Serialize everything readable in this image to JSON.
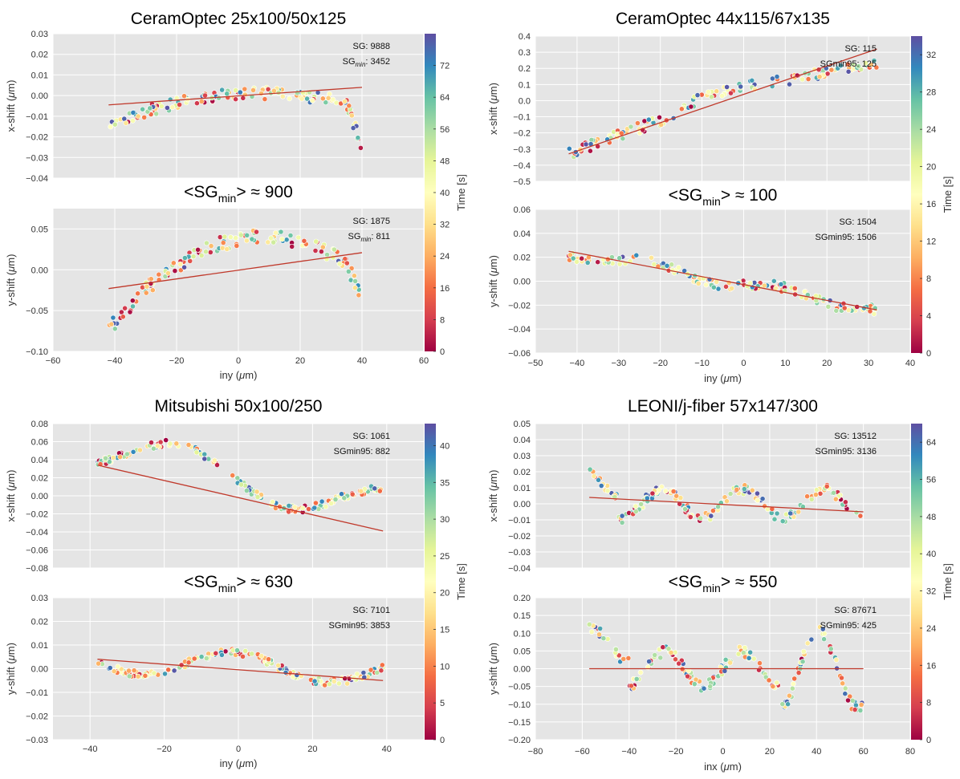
{
  "colorbar_palette": [
    "#9e0142",
    "#d53e4f",
    "#f46d43",
    "#fdae61",
    "#fee08b",
    "#ffffbf",
    "#e6f598",
    "#abdda4",
    "#66c2a5",
    "#3288bd",
    "#5e4fa2"
  ],
  "plot_background": "#e5e5e5",
  "fit_line_color": "#c0392b",
  "chart_data": [
    {
      "type": "scatter",
      "title": "CeramOptec 25x100/50x125",
      "sg_min_label": {
        "prefix": "<SG",
        "sub": "min",
        "suffix": "> ≈ 900"
      },
      "xlabel": {
        "main": "iny (",
        "greek": "μ",
        "unit": "m)"
      },
      "xlim": [
        -60,
        60
      ],
      "xticks": [
        "−60",
        "−40",
        "−20",
        "0",
        "20",
        "40",
        "60"
      ],
      "xtick_values": [
        -60,
        -40,
        -20,
        0,
        20,
        40,
        60
      ],
      "colorbar": {
        "label": "Time [s]",
        "range": [
          0,
          80
        ],
        "ticks": [
          "0",
          "8",
          "16",
          "24",
          "32",
          "40",
          "48",
          "56",
          "64",
          "72"
        ],
        "tick_values": [
          0,
          8,
          16,
          24,
          32,
          40,
          48,
          56,
          64,
          72
        ]
      },
      "panels": [
        {
          "ylabel": {
            "main": "x-shift (",
            "greek": "μ",
            "unit": "m)"
          },
          "ylim": [
            -0.04,
            0.03
          ],
          "yticks": [
            "−0.04",
            "−0.03",
            "−0.02",
            "−0.01",
            "0.00",
            "0.01",
            "0.02",
            "0.03"
          ],
          "ytick_values": [
            -0.04,
            -0.03,
            -0.02,
            -0.01,
            0.0,
            0.01,
            0.02,
            0.03
          ],
          "annotation": {
            "line1": "SG: 9888",
            "line2_prefix": "SG",
            "line2_sub": "min",
            "line2_suffix": ": 3452"
          },
          "fit": {
            "x": [
              -42,
              40
            ],
            "y": [
              -0.0045,
              0.004
            ]
          },
          "series": {
            "kind": "xshift_ceram",
            "tmax": 80,
            "n": 140,
            "xrange": [
              -42,
              40
            ]
          }
        },
        {
          "ylabel": {
            "main": "y-shift (",
            "greek": "μ",
            "unit": "m)"
          },
          "ylim": [
            -0.1,
            0.075
          ],
          "yticks": [
            "−0.10",
            "−0.05",
            "0.00",
            "0.05"
          ],
          "ytick_values": [
            -0.1,
            -0.05,
            0.0,
            0.05
          ],
          "annotation": {
            "line1": "SG: 1875",
            "line2_prefix": "SG",
            "line2_sub": "min",
            "line2_suffix": ": 811"
          },
          "fit": {
            "x": [
              -42,
              40
            ],
            "y": [
              -0.023,
              0.021
            ]
          },
          "series": {
            "kind": "yshift_ceram",
            "tmax": 80,
            "n": 140,
            "xrange": [
              -42,
              40
            ]
          }
        }
      ]
    },
    {
      "type": "scatter",
      "title": "CeramOptec 44x115/67x135",
      "sg_min_label": {
        "prefix": "<SG",
        "sub": "min",
        "suffix": "> ≈ 100"
      },
      "xlabel": {
        "main": "iny (",
        "greek": "μ",
        "unit": "m)"
      },
      "xlim": [
        -50,
        40
      ],
      "xticks": [
        "−50",
        "−40",
        "−30",
        "−20",
        "−10",
        "0",
        "10",
        "20",
        "30",
        "40"
      ],
      "xtick_values": [
        -50,
        -40,
        -30,
        -20,
        -10,
        0,
        10,
        20,
        30,
        40
      ],
      "colorbar": {
        "label": "Time [s]",
        "range": [
          0,
          34
        ],
        "ticks": [
          "0",
          "4",
          "8",
          "12",
          "16",
          "20",
          "24",
          "28",
          "32"
        ],
        "tick_values": [
          0,
          4,
          8,
          12,
          16,
          20,
          24,
          28,
          32
        ]
      },
      "panels": [
        {
          "ylabel": {
            "main": "x-shift (",
            "greek": "μ",
            "unit": "m)"
          },
          "ylim": [
            -0.5,
            0.4
          ],
          "yticks": [
            "−0.5",
            "−0.4",
            "−0.3",
            "−0.2",
            "−0.1",
            "0.0",
            "0.1",
            "0.2",
            "0.3",
            "0.4"
          ],
          "ytick_values": [
            -0.5,
            -0.4,
            -0.3,
            -0.2,
            -0.1,
            0.0,
            0.1,
            0.2,
            0.3,
            0.4
          ],
          "annotation": {
            "line1": "SG: 115",
            "line2_prefix": "SGmin95",
            "line2_sub": "",
            "line2_suffix": ": 125"
          },
          "fit": {
            "x": [
              -42,
              32
            ],
            "y": [
              -0.33,
              0.32
            ]
          },
          "series": {
            "kind": "xshift_c2",
            "tmax": 34,
            "n": 140,
            "xrange": [
              -42,
              32
            ]
          }
        },
        {
          "ylabel": {
            "main": "y-shift (",
            "greek": "μ",
            "unit": "m)"
          },
          "ylim": [
            -0.06,
            0.06
          ],
          "yticks": [
            "−0.06",
            "−0.04",
            "−0.02",
            "0.00",
            "0.02",
            "0.04",
            "0.06"
          ],
          "ytick_values": [
            -0.06,
            -0.04,
            -0.02,
            0.0,
            0.02,
            0.04,
            0.06
          ],
          "annotation": {
            "line1": "SG: 1504",
            "line2_prefix": "SGmin95",
            "line2_sub": "",
            "line2_suffix": ": 1506"
          },
          "fit": {
            "x": [
              -42,
              32
            ],
            "y": [
              0.025,
              -0.024
            ]
          },
          "series": {
            "kind": "yshift_c2",
            "tmax": 34,
            "n": 140,
            "xrange": [
              -42,
              32
            ]
          }
        }
      ]
    },
    {
      "type": "scatter",
      "title": "Mitsubishi 50x100/250",
      "sg_min_label": {
        "prefix": "<SG",
        "sub": "min",
        "suffix": "> ≈ 630"
      },
      "xlabel": {
        "main": "iny (",
        "greek": "μ",
        "unit": "m)"
      },
      "xlim": [
        -50,
        50
      ],
      "xticks": [
        "−40",
        "−20",
        "0",
        "20",
        "40"
      ],
      "xtick_values": [
        -40,
        -20,
        0,
        20,
        40
      ],
      "colorbar": {
        "label": "Time [s]",
        "range": [
          0,
          43
        ],
        "ticks": [
          "0",
          "5",
          "10",
          "15",
          "20",
          "25",
          "30",
          "35",
          "40"
        ],
        "tick_values": [
          0,
          5,
          10,
          15,
          20,
          25,
          30,
          35,
          40
        ]
      },
      "panels": [
        {
          "ylabel": {
            "main": "x-shift (",
            "greek": "μ",
            "unit": "m)"
          },
          "ylim": [
            -0.08,
            0.08
          ],
          "yticks": [
            "−0.08",
            "−0.06",
            "−0.04",
            "−0.02",
            "0.00",
            "0.02",
            "0.04",
            "0.06",
            "0.08"
          ],
          "ytick_values": [
            -0.08,
            -0.06,
            -0.04,
            -0.02,
            0.0,
            0.02,
            0.04,
            0.06,
            0.08
          ],
          "annotation": {
            "line1": "SG: 1061",
            "line2_prefix": "SGmin95",
            "line2_sub": "",
            "line2_suffix": ": 882"
          },
          "fit": {
            "x": [
              -38,
              39
            ],
            "y": [
              0.034,
              -0.039
            ]
          },
          "series": {
            "kind": "xshift_mit",
            "tmax": 43,
            "n": 170,
            "xrange": [
              -38,
              39
            ]
          }
        },
        {
          "ylabel": {
            "main": "y-shift (",
            "greek": "μ",
            "unit": "m)"
          },
          "ylim": [
            -0.03,
            0.03
          ],
          "yticks": [
            "−0.03",
            "−0.02",
            "−0.01",
            "0.00",
            "0.01",
            "0.02",
            "0.03"
          ],
          "ytick_values": [
            -0.03,
            -0.02,
            -0.01,
            0.0,
            0.01,
            0.02,
            0.03
          ],
          "annotation": {
            "line1": "SG: 7101",
            "line2_prefix": "SGmin95",
            "line2_sub": "",
            "line2_suffix": ": 3853"
          },
          "fit": {
            "x": [
              -38,
              39
            ],
            "y": [
              0.004,
              -0.005
            ]
          },
          "series": {
            "kind": "yshift_mit",
            "tmax": 43,
            "n": 170,
            "xrange": [
              -38,
              39
            ]
          }
        }
      ]
    },
    {
      "type": "scatter",
      "title": "LEONI/j-fiber 57x147/300",
      "sg_min_label": {
        "prefix": "<SG",
        "sub": "min",
        "suffix": "> ≈ 550"
      },
      "xlabel": {
        "main": "inx (",
        "greek": "μ",
        "unit": "m)"
      },
      "xlim": [
        -80,
        80
      ],
      "xticks": [
        "−80",
        "−60",
        "−40",
        "−20",
        "0",
        "20",
        "40",
        "60",
        "80"
      ],
      "xtick_values": [
        -80,
        -60,
        -40,
        -20,
        0,
        20,
        40,
        60,
        80
      ],
      "colorbar": {
        "label": "Time [s]",
        "range": [
          0,
          68
        ],
        "ticks": [
          "0",
          "8",
          "16",
          "24",
          "32",
          "40",
          "48",
          "56",
          "64"
        ],
        "tick_values": [
          0,
          8,
          16,
          24,
          32,
          40,
          48,
          56,
          64
        ]
      },
      "panels": [
        {
          "ylabel": {
            "main": "x-shift (",
            "greek": "μ",
            "unit": "m)"
          },
          "ylim": [
            -0.04,
            0.05
          ],
          "yticks": [
            "−0.04",
            "−0.03",
            "−0.02",
            "−0.01",
            "0.00",
            "0.01",
            "0.02",
            "0.03",
            "0.04",
            "0.05"
          ],
          "ytick_values": [
            -0.04,
            -0.03,
            -0.02,
            -0.01,
            0.0,
            0.01,
            0.02,
            0.03,
            0.04,
            0.05
          ],
          "annotation": {
            "line1": "SG: 13512",
            "line2_prefix": "SGmin95",
            "line2_sub": "",
            "line2_suffix": ": 3136"
          },
          "fit": {
            "x": [
              -57,
              60
            ],
            "y": [
              0.004,
              -0.005
            ]
          },
          "series": {
            "kind": "xshift_leoni",
            "tmax": 68,
            "n": 170,
            "xrange": [
              -57,
              60
            ]
          }
        },
        {
          "ylabel": {
            "main": "y-shift (",
            "greek": "μ",
            "unit": "m)"
          },
          "ylim": [
            -0.2,
            0.2
          ],
          "yticks": [
            "−0.20",
            "−0.15",
            "−0.10",
            "−0.05",
            "0.00",
            "0.05",
            "0.10",
            "0.15",
            "0.20"
          ],
          "ytick_values": [
            -0.2,
            -0.15,
            -0.1,
            -0.05,
            0.0,
            0.05,
            0.1,
            0.15,
            0.2
          ],
          "annotation": {
            "line1": "SG: 87671",
            "line2_prefix": "SGmin95",
            "line2_sub": "",
            "line2_suffix": ": 425"
          },
          "fit": {
            "x": [
              -57,
              60
            ],
            "y": [
              0.0,
              0.0
            ]
          },
          "series": {
            "kind": "yshift_leoni",
            "tmax": 68,
            "n": 170,
            "xrange": [
              -57,
              60
            ]
          }
        }
      ]
    }
  ]
}
